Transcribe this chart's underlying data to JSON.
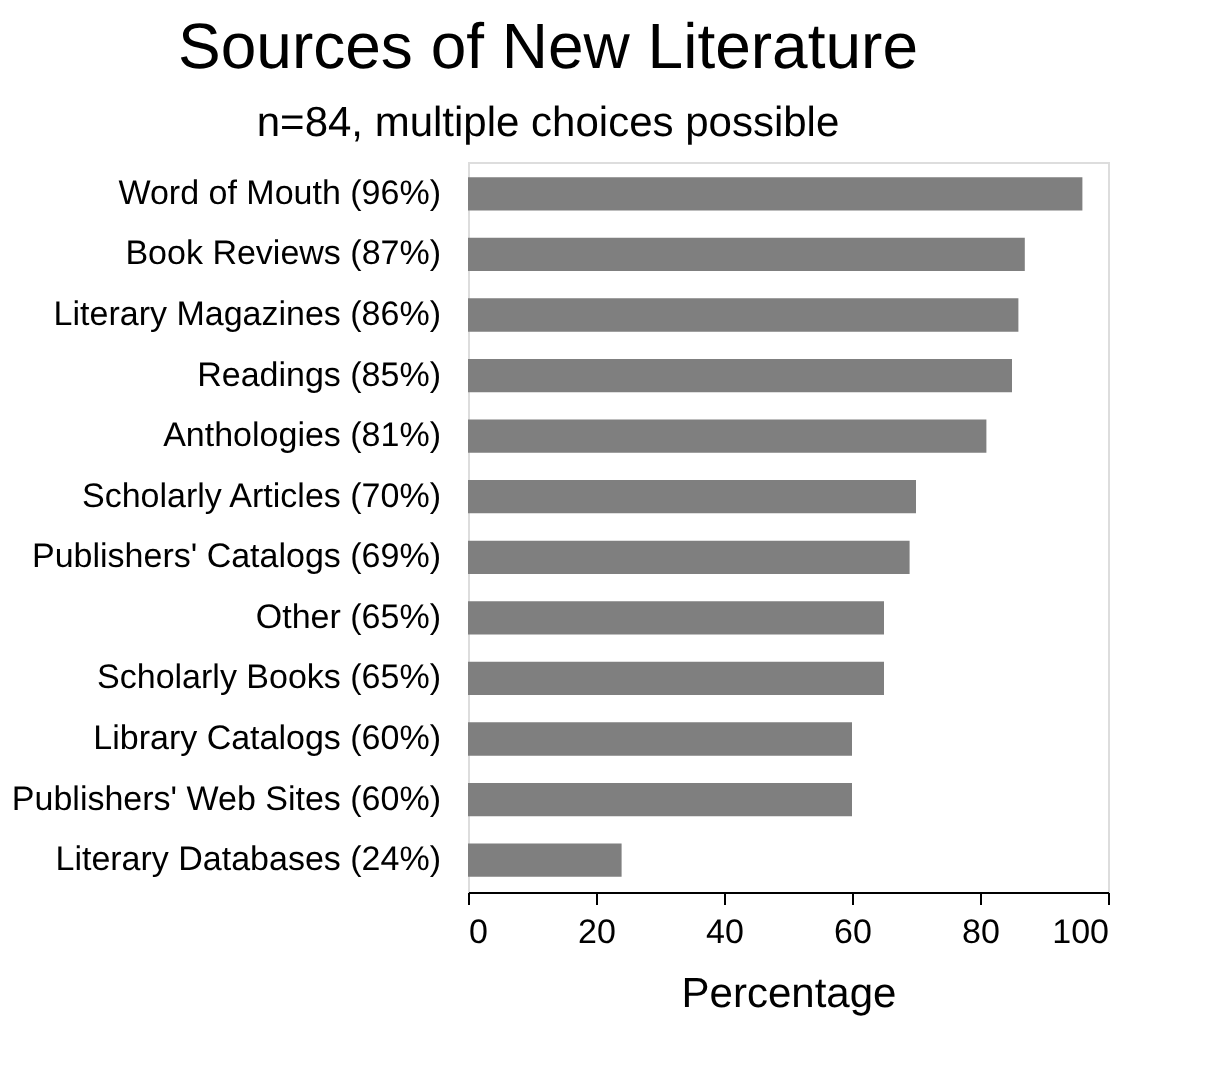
{
  "chart_data": {
    "type": "bar",
    "orientation": "horizontal",
    "title": "Sources of New Literature",
    "subtitle": "n=84, multiple choices possible",
    "xlabel": "Percentage",
    "categories": [
      "Word of Mouth (96%)",
      "Book Reviews (87%)",
      "Literary Magazines (86%)",
      "Readings (85%)",
      "Anthologies (81%)",
      "Scholarly Articles (70%)",
      "Publishers' Catalogs (69%)",
      "Other (65%)",
      "Scholarly Books (65%)",
      "Library Catalogs (60%)",
      "Publishers' Web Sites (60%)",
      "Literary Databases (24%)"
    ],
    "values": [
      96,
      87,
      86,
      85,
      81,
      70,
      69,
      65,
      65,
      60,
      60,
      24
    ],
    "color": "#7f7f7f",
    "xlim": [
      0,
      100
    ],
    "xticks": [
      0,
      20,
      40,
      60,
      80,
      100
    ],
    "grid": false
  }
}
